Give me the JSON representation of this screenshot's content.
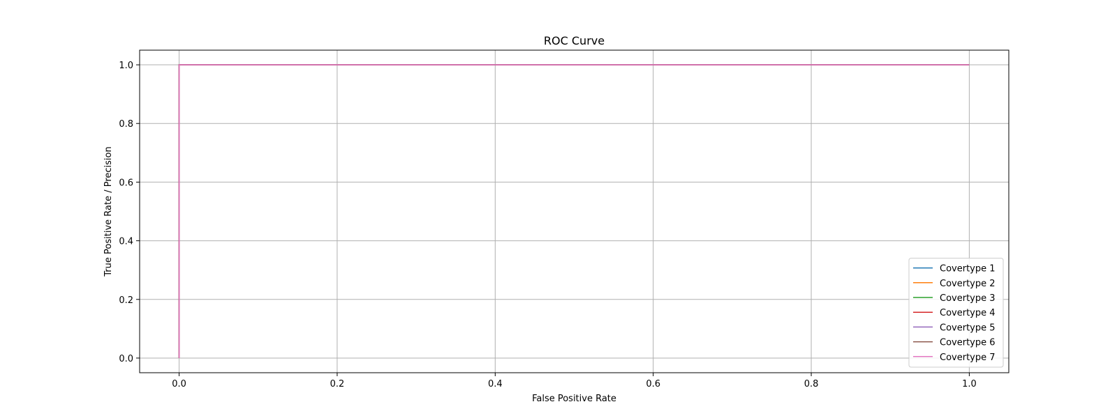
{
  "chart_data": {
    "type": "line",
    "title": "ROC Curve",
    "xlabel": "False Positive Rate",
    "ylabel": "True Positive Rate / Precision",
    "xlim": [
      -0.05,
      1.05
    ],
    "ylim": [
      -0.05,
      1.05
    ],
    "xticks": [
      0.0,
      0.2,
      0.4,
      0.6,
      0.8,
      1.0
    ],
    "xtick_labels": [
      "0.0",
      "0.2",
      "0.4",
      "0.6",
      "0.8",
      "1.0"
    ],
    "yticks": [
      0.0,
      0.2,
      0.4,
      0.6,
      0.8,
      1.0
    ],
    "ytick_labels": [
      "0.0",
      "0.2",
      "0.4",
      "0.6",
      "0.8",
      "1.0"
    ],
    "grid": true,
    "legend": "lower-right",
    "series": [
      {
        "name": "Covertype 1",
        "color": "#1f77b4",
        "x": [
          0.0,
          0.0,
          1.0
        ],
        "y": [
          0.0,
          1.0,
          1.0
        ]
      },
      {
        "name": "Covertype 2",
        "color": "#ff7f0e",
        "x": [
          0.0,
          0.0,
          1.0
        ],
        "y": [
          0.0,
          1.0,
          1.0
        ]
      },
      {
        "name": "Covertype 3",
        "color": "#2ca02c",
        "x": [
          0.0,
          0.0,
          1.0
        ],
        "y": [
          0.0,
          1.0,
          1.0
        ]
      },
      {
        "name": "Covertype 4",
        "color": "#d62728",
        "x": [
          0.0,
          0.0,
          1.0
        ],
        "y": [
          0.0,
          1.0,
          1.0
        ]
      },
      {
        "name": "Covertype 5",
        "color": "#9467bd",
        "x": [
          0.0,
          0.0,
          1.0
        ],
        "y": [
          0.0,
          1.0,
          1.0
        ]
      },
      {
        "name": "Covertype 6",
        "color": "#8c564b",
        "x": [
          0.0,
          0.0,
          1.0
        ],
        "y": [
          0.0,
          1.0,
          1.0
        ]
      },
      {
        "name": "Covertype 7",
        "color": "#e377c2",
        "x": [
          0.0,
          0.0,
          1.0
        ],
        "y": [
          0.0,
          1.0,
          1.0
        ]
      }
    ]
  }
}
